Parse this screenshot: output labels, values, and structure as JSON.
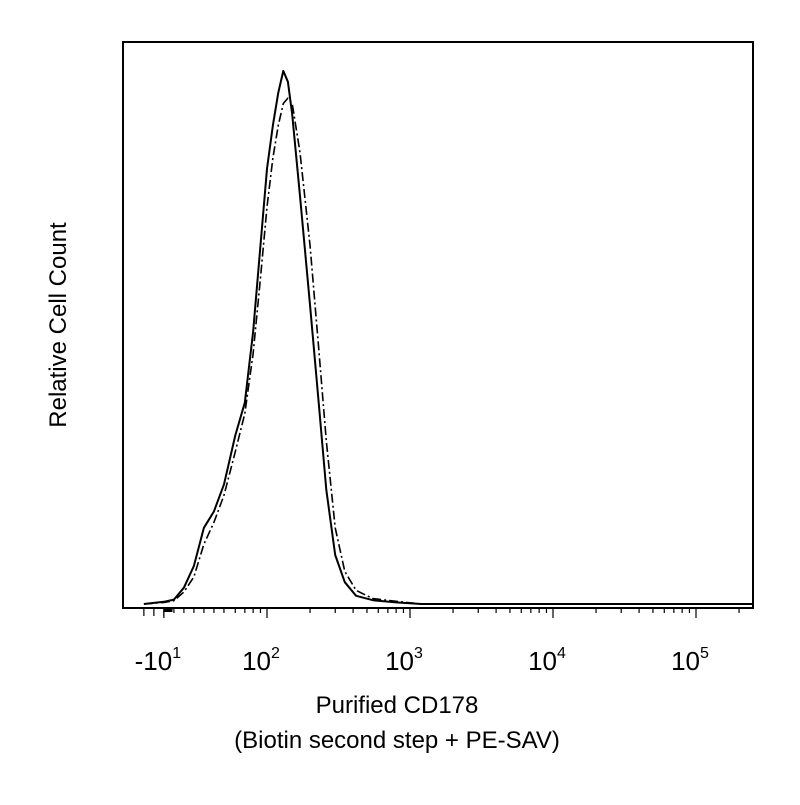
{
  "chart_data": {
    "type": "line",
    "xlabel": "Purified CD178",
    "xlabel_line2": "(Biotin second step + PE-SAV)",
    "ylabel": "Relative Cell Count",
    "x_scale": "biexponential",
    "x_ticks": [
      {
        "value": -10,
        "base": "-10",
        "exp": "1"
      },
      {
        "value": 100,
        "base": "10",
        "exp": "2"
      },
      {
        "value": 1000,
        "base": "10",
        "exp": "3"
      },
      {
        "value": 10000,
        "base": "10",
        "exp": "4"
      },
      {
        "value": 100000,
        "base": "10",
        "exp": "5"
      }
    ],
    "xlim": [
      -30,
      250000
    ],
    "ylim": [
      0,
      1
    ],
    "grid": false,
    "legend": "none",
    "series": [
      {
        "style": "solid",
        "color": "#000000",
        "points": [
          [
            -30,
            0.0
          ],
          [
            -10,
            0.004
          ],
          [
            0,
            0.008
          ],
          [
            10,
            0.03
          ],
          [
            20,
            0.07
          ],
          [
            30,
            0.14
          ],
          [
            40,
            0.17
          ],
          [
            50,
            0.22
          ],
          [
            60,
            0.31
          ],
          [
            70,
            0.37
          ],
          [
            80,
            0.5
          ],
          [
            90,
            0.66
          ],
          [
            100,
            0.8
          ],
          [
            110,
            0.88
          ],
          [
            120,
            0.94
          ],
          [
            130,
            0.98
          ],
          [
            140,
            0.96
          ],
          [
            150,
            0.9
          ],
          [
            170,
            0.75
          ],
          [
            200,
            0.55
          ],
          [
            230,
            0.37
          ],
          [
            260,
            0.21
          ],
          [
            300,
            0.09
          ],
          [
            350,
            0.04
          ],
          [
            420,
            0.015
          ],
          [
            550,
            0.007
          ],
          [
            800,
            0.003
          ],
          [
            1200,
            0.0
          ],
          [
            250000,
            0.0
          ]
        ]
      },
      {
        "style": "dashdot",
        "color": "#000000",
        "points": [
          [
            -30,
            0.0
          ],
          [
            -10,
            0.003
          ],
          [
            0,
            0.006
          ],
          [
            10,
            0.022
          ],
          [
            20,
            0.05
          ],
          [
            30,
            0.11
          ],
          [
            40,
            0.15
          ],
          [
            50,
            0.2
          ],
          [
            60,
            0.28
          ],
          [
            70,
            0.35
          ],
          [
            80,
            0.46
          ],
          [
            90,
            0.6
          ],
          [
            100,
            0.73
          ],
          [
            110,
            0.82
          ],
          [
            120,
            0.88
          ],
          [
            130,
            0.92
          ],
          [
            140,
            0.93
          ],
          [
            150,
            0.92
          ],
          [
            170,
            0.83
          ],
          [
            200,
            0.66
          ],
          [
            230,
            0.47
          ],
          [
            260,
            0.3
          ],
          [
            300,
            0.14
          ],
          [
            350,
            0.06
          ],
          [
            420,
            0.025
          ],
          [
            550,
            0.01
          ],
          [
            800,
            0.005
          ],
          [
            1200,
            0.0
          ],
          [
            250000,
            0.0
          ]
        ]
      }
    ]
  }
}
